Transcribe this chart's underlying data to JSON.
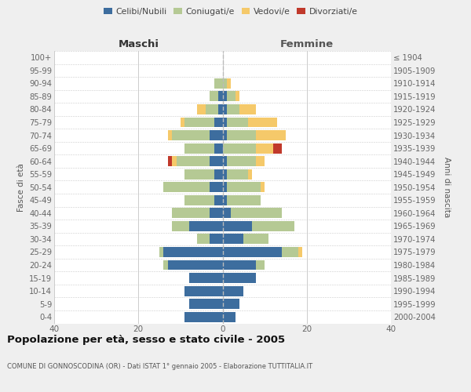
{
  "age_groups": [
    "100+",
    "95-99",
    "90-94",
    "85-89",
    "80-84",
    "75-79",
    "70-74",
    "65-69",
    "60-64",
    "55-59",
    "50-54",
    "45-49",
    "40-44",
    "35-39",
    "30-34",
    "25-29",
    "20-24",
    "15-19",
    "10-14",
    "5-9",
    "0-4"
  ],
  "birth_years": [
    "≤ 1904",
    "1905-1909",
    "1910-1914",
    "1915-1919",
    "1920-1924",
    "1925-1929",
    "1930-1934",
    "1935-1939",
    "1940-1944",
    "1945-1949",
    "1950-1954",
    "1955-1959",
    "1960-1964",
    "1965-1969",
    "1970-1974",
    "1975-1979",
    "1980-1984",
    "1985-1989",
    "1990-1994",
    "1995-1999",
    "2000-2004"
  ],
  "colors": {
    "celibi": "#3d6d9e",
    "coniugati": "#b5c994",
    "vedovi": "#f5c96a",
    "divorziati": "#c0392b"
  },
  "males": {
    "celibi": [
      0,
      0,
      0,
      1,
      1,
      2,
      3,
      2,
      3,
      2,
      3,
      2,
      3,
      8,
      3,
      14,
      13,
      8,
      9,
      8,
      9
    ],
    "coniugati": [
      0,
      0,
      2,
      2,
      3,
      7,
      9,
      7,
      8,
      7,
      11,
      7,
      9,
      4,
      3,
      1,
      1,
      0,
      0,
      0,
      0
    ],
    "vedovi": [
      0,
      0,
      0,
      0,
      2,
      1,
      1,
      0,
      1,
      0,
      0,
      0,
      0,
      0,
      0,
      0,
      0,
      0,
      0,
      0,
      0
    ],
    "divorziati": [
      0,
      0,
      0,
      0,
      0,
      0,
      0,
      0,
      1,
      0,
      0,
      0,
      0,
      0,
      0,
      0,
      0,
      0,
      0,
      0,
      0
    ]
  },
  "females": {
    "celibi": [
      0,
      0,
      0,
      1,
      1,
      1,
      1,
      0,
      1,
      1,
      1,
      1,
      2,
      7,
      5,
      14,
      8,
      8,
      5,
      4,
      3
    ],
    "coniugati": [
      0,
      0,
      1,
      2,
      3,
      5,
      7,
      8,
      7,
      5,
      8,
      8,
      12,
      10,
      6,
      4,
      2,
      0,
      0,
      0,
      0
    ],
    "vedovi": [
      0,
      0,
      1,
      1,
      4,
      7,
      7,
      4,
      2,
      1,
      1,
      0,
      0,
      0,
      0,
      1,
      0,
      0,
      0,
      0,
      0
    ],
    "divorziati": [
      0,
      0,
      0,
      0,
      0,
      0,
      0,
      2,
      0,
      0,
      0,
      0,
      0,
      0,
      0,
      0,
      0,
      0,
      0,
      0,
      0
    ]
  },
  "xlim": 40,
  "title": "Popolazione per età, sesso e stato civile - 2005",
  "subtitle": "COMUNE DI GONNOSCODINA (OR) - Dati ISTAT 1° gennaio 2005 - Elaborazione TUTTITALIA.IT",
  "ylabel_left": "Fasce di età",
  "ylabel_right": "Anni di nascita",
  "xlabel_left": "Maschi",
  "xlabel_right": "Femmine",
  "bg_color": "#efefef",
  "plot_bg": "#ffffff",
  "grid_color": "#cccccc"
}
